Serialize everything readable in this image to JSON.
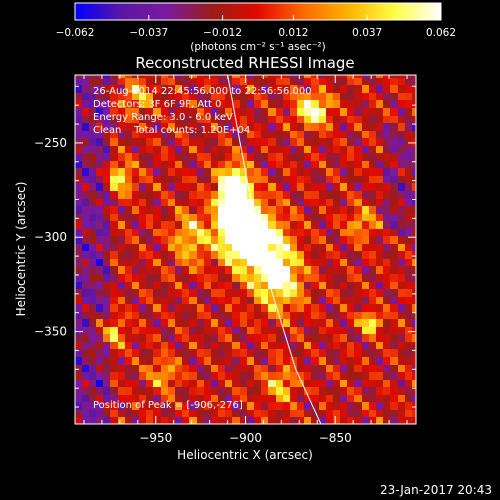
{
  "chart_data": {
    "type": "heatmap",
    "title": "Reconstructed RHESSI Image",
    "xlabel": "Heliocentric X (arcsec)",
    "ylabel": "Heliocentric Y (arcsec)",
    "xlim": [
      -995,
      -805
    ],
    "ylim": [
      -399,
      -214
    ],
    "x_ticks": [
      {
        "value": -950,
        "label": "−950"
      },
      {
        "value": -900,
        "label": "−900"
      },
      {
        "value": -850,
        "label": "−850"
      }
    ],
    "y_ticks": [
      {
        "value": -250,
        "label": "−250"
      },
      {
        "value": -300,
        "label": "−300"
      },
      {
        "value": -350,
        "label": "−350"
      }
    ],
    "colorbar": {
      "range": [
        -0.062,
        0.062
      ],
      "tick_labels": [
        "−0.062",
        "−0.037",
        "−0.012",
        "0.012",
        "0.037",
        "0.062"
      ],
      "tick_values": [
        -0.062,
        -0.037,
        -0.012,
        0.012,
        0.037,
        0.062
      ],
      "units": "(photons cm⁻² s⁻¹ asec⁻²)"
    },
    "info_lines": [
      "26-Aug-2014 22:45:56.000 to 22:56:56.000",
      "Detectors: 3F 6F 9F, Att 0",
      "Energy Range: 3.0 - 6.0 keV",
      "Clean    Total counts: 1.20E+04"
    ],
    "peak_label": "Position of Peak = [-906,-276]",
    "peak": [
      -906,
      -276
    ],
    "limb_points": [
      [
        -910,
        -214
      ],
      [
        -903,
        -250
      ],
      [
        -895,
        -290
      ],
      [
        -885,
        -330
      ],
      [
        -872,
        -370
      ],
      [
        -858,
        -399
      ]
    ],
    "sources": [
      {
        "x": -906,
        "y": -276,
        "amp": 1.0,
        "sx": 6,
        "sy": 9
      },
      {
        "x": -903,
        "y": -296,
        "amp": 0.95,
        "sx": 8,
        "sy": 10
      },
      {
        "x": -890,
        "y": -305,
        "amp": 0.5,
        "sx": 10,
        "sy": 14
      },
      {
        "x": -880,
        "y": -322,
        "amp": 0.45,
        "sx": 9,
        "sy": 12
      },
      {
        "x": -880,
        "y": -378,
        "amp": 0.35,
        "sx": 6,
        "sy": 7
      },
      {
        "x": -862,
        "y": -232,
        "amp": 0.55,
        "sx": 7,
        "sy": 6
      },
      {
        "x": -970,
        "y": -268,
        "amp": 0.4,
        "sx": 6,
        "sy": 6
      },
      {
        "x": -960,
        "y": -225,
        "amp": 0.35,
        "sx": 6,
        "sy": 6
      },
      {
        "x": -975,
        "y": -350,
        "amp": 0.35,
        "sx": 6,
        "sy": 6
      },
      {
        "x": -945,
        "y": -372,
        "amp": 0.3,
        "sx": 6,
        "sy": 6
      },
      {
        "x": -830,
        "y": -345,
        "amp": 0.5,
        "sx": 4,
        "sy": 4
      },
      {
        "x": -835,
        "y": -292,
        "amp": 0.3,
        "sx": 6,
        "sy": 6
      },
      {
        "x": -930,
        "y": -300,
        "amp": 0.35,
        "sx": 8,
        "sy": 10
      }
    ],
    "background_level": 0.45,
    "ripple_amplitude": 0.26,
    "ripple_period": 13,
    "grid_step": 4,
    "limb_color": "#ffffff",
    "colormap": [
      "#0000ff",
      "#5a16a4",
      "#7a1aa0",
      "#9b1c18",
      "#e10a00",
      "#ff6a00",
      "#ffb400",
      "#ffff44",
      "#ffffff"
    ]
  },
  "footer": {
    "timestamp": "23-Jan-2017 20:43"
  }
}
